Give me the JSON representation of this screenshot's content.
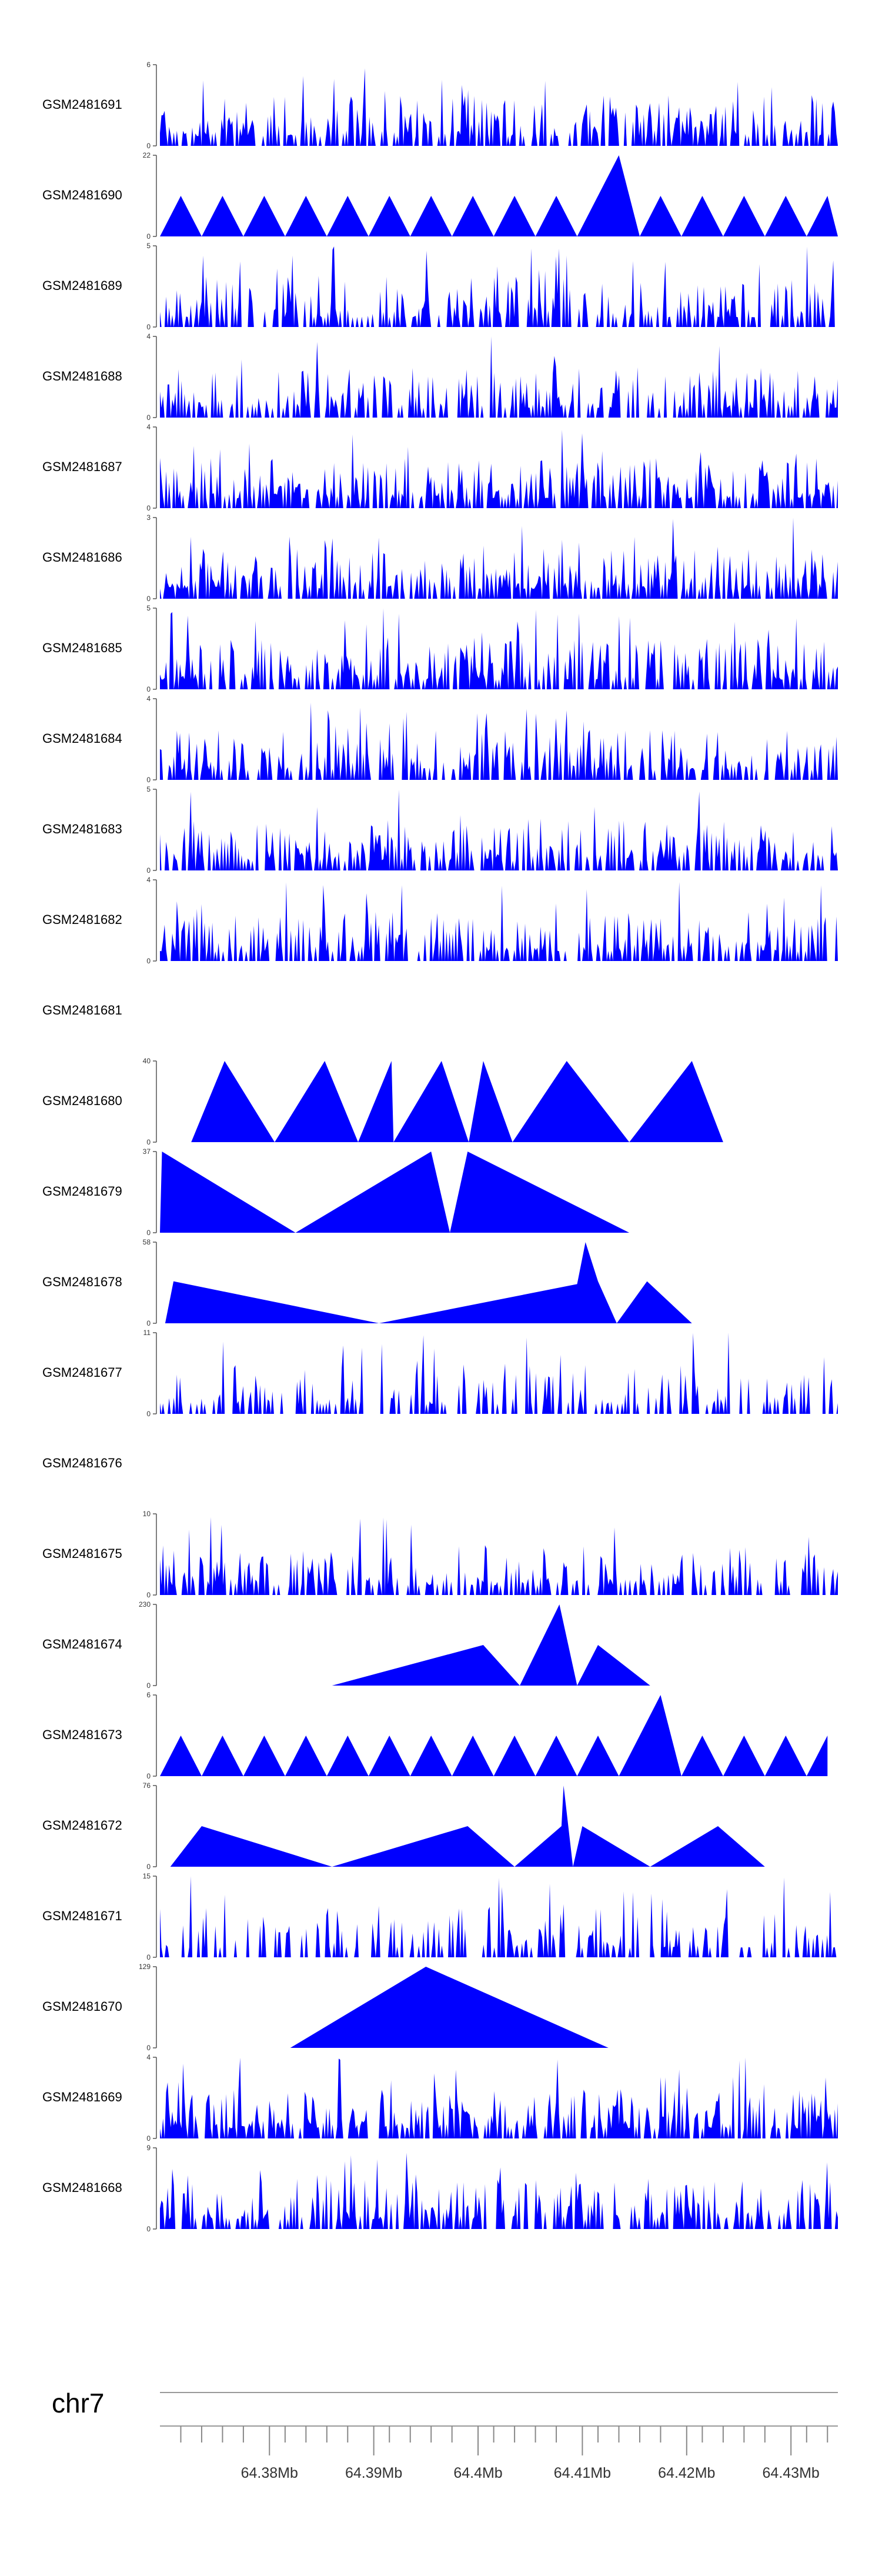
{
  "chart_data": {
    "type": "area",
    "title": "",
    "xlim": [
      64.3695,
      64.4345
    ],
    "x_axis": {
      "chromosome": "chr7",
      "tick_labels": [
        "64.38Mb",
        "64.39Mb",
        "64.4Mb",
        "64.41Mb",
        "64.42Mb",
        "64.43Mb"
      ],
      "major_ticks": [
        64.38,
        64.39,
        64.4,
        64.41,
        64.42,
        64.43
      ],
      "minor_ticks": [
        64.3715,
        64.3735,
        64.3755,
        64.3775,
        64.3815,
        64.3835,
        64.3855,
        64.3875,
        64.3915,
        64.3935,
        64.3955,
        64.3975,
        64.4015,
        64.4035,
        64.4055,
        64.4075,
        64.4115,
        64.4135,
        64.4155,
        64.4175,
        64.4215,
        64.4235,
        64.4255,
        64.4275,
        64.4315,
        64.4335
      ]
    },
    "fill_color": "#0000ff",
    "tracks": [
      {
        "name": "GSM2481691",
        "ymax": 6,
        "pattern": "noise",
        "seed": 11,
        "density": 0.55
      },
      {
        "name": "GSM2481690",
        "ymax": 22,
        "pattern": "peaks",
        "x": [
          64.3695,
          64.3715,
          64.3735,
          64.3755,
          64.3775,
          64.3795,
          64.3815,
          64.3835,
          64.3855,
          64.3875,
          64.3895,
          64.3915,
          64.3935,
          64.3955,
          64.3975,
          64.3995,
          64.4015,
          64.4035,
          64.4055,
          64.4075,
          64.4095,
          64.4115,
          64.4135,
          64.4155,
          64.4175,
          64.4195,
          64.4215,
          64.4235,
          64.4255,
          64.4275,
          64.4295,
          64.4315,
          64.4335,
          64.4345
        ],
        "y": [
          0,
          11,
          0,
          11,
          0,
          11,
          0,
          11,
          0,
          11,
          0,
          11,
          0,
          11,
          0,
          11,
          0,
          11,
          0,
          11,
          0,
          11,
          22,
          0,
          11,
          0,
          11,
          0,
          11,
          0,
          11,
          0,
          11,
          0
        ]
      },
      {
        "name": "GSM2481689",
        "ymax": 5,
        "pattern": "noise",
        "seed": 23,
        "density": 0.5
      },
      {
        "name": "GSM2481688",
        "ymax": 4,
        "pattern": "noise",
        "seed": 37,
        "density": 0.5,
        "spike_x": 64.4013,
        "spike_y": 4
      },
      {
        "name": "GSM2481687",
        "ymax": 4,
        "pattern": "noise",
        "seed": 41,
        "density": 0.6
      },
      {
        "name": "GSM2481686",
        "ymax": 3,
        "pattern": "noise",
        "seed": 53,
        "density": 0.6
      },
      {
        "name": "GSM2481685",
        "ymax": 5,
        "pattern": "noise",
        "seed": 67,
        "density": 0.55
      },
      {
        "name": "GSM2481684",
        "ymax": 4,
        "pattern": "noise",
        "seed": 71,
        "density": 0.55
      },
      {
        "name": "GSM2481683",
        "ymax": 5,
        "pattern": "noise",
        "seed": 83,
        "density": 0.55
      },
      {
        "name": "GSM2481682",
        "ymax": 4,
        "pattern": "noise",
        "seed": 97,
        "density": 0.5
      },
      {
        "name": "GSM2481681",
        "ymax": null,
        "pattern": "empty"
      },
      {
        "name": "GSM2481680",
        "ymax": 40,
        "pattern": "peaks",
        "x": [
          64.3725,
          64.3757,
          64.3805,
          64.3853,
          64.3885,
          64.3917,
          64.3919,
          64.3965,
          64.3991,
          64.4005,
          64.4033,
          64.4085,
          64.4145,
          64.4205,
          64.4235
        ],
        "y": [
          0,
          40,
          0,
          40,
          0,
          40,
          0,
          40,
          0,
          40,
          0,
          40,
          0,
          40,
          0
        ]
      },
      {
        "name": "GSM2481679",
        "ymax": 37,
        "pattern": "peaks",
        "x": [
          64.3695,
          64.3697,
          64.3825,
          64.3955,
          64.3973,
          64.399,
          64.4145
        ],
        "y": [
          0,
          37,
          0,
          37,
          0,
          37,
          0
        ]
      },
      {
        "name": "GSM2481678",
        "ymax": 58,
        "pattern": "peaks",
        "x": [
          64.37,
          64.3708,
          64.3905,
          64.4095,
          64.4103,
          64.4115,
          64.4133,
          64.4162,
          64.4205,
          64.4237
        ],
        "y": [
          0,
          30,
          0,
          28,
          58,
          30,
          0,
          30,
          0,
          0
        ]
      },
      {
        "name": "GSM2481677",
        "ymax": 11,
        "pattern": "noise",
        "seed": 109,
        "density": 0.35,
        "spike_x": 64.424,
        "spike_y": 11
      },
      {
        "name": "GSM2481676",
        "ymax": null,
        "pattern": "empty"
      },
      {
        "name": "GSM2481675",
        "ymax": 10,
        "pattern": "noise",
        "seed": 127,
        "density": 0.5
      },
      {
        "name": "GSM2481674",
        "ymax": 230,
        "pattern": "peaks",
        "x": [
          64.386,
          64.4005,
          64.404,
          64.4078,
          64.4095,
          64.4115,
          64.4165
        ],
        "y": [
          0,
          115,
          0,
          230,
          0,
          115,
          0
        ]
      },
      {
        "name": "GSM2481673",
        "ymax": 6,
        "pattern": "peaks",
        "x": [
          64.3695,
          64.3715,
          64.3735,
          64.3755,
          64.3775,
          64.3795,
          64.3815,
          64.3835,
          64.3855,
          64.3875,
          64.3895,
          64.3915,
          64.3935,
          64.3955,
          64.3975,
          64.3995,
          64.4015,
          64.4035,
          64.4055,
          64.4075,
          64.4095,
          64.4115,
          64.4135,
          64.4155,
          64.4175,
          64.4195,
          64.4215,
          64.4235,
          64.4255,
          64.4275,
          64.4295,
          64.4315,
          64.4335
        ],
        "y": [
          0,
          3,
          0,
          3,
          0,
          3,
          0,
          3,
          0,
          3,
          0,
          3,
          0,
          3,
          0,
          3,
          0,
          3,
          0,
          3,
          0,
          3,
          0,
          3,
          6,
          0,
          3,
          0,
          3,
          0,
          3,
          0,
          3
        ]
      },
      {
        "name": "GSM2481672",
        "ymax": 76,
        "pattern": "peaks",
        "x": [
          64.3705,
          64.3735,
          64.386,
          64.399,
          64.4035,
          64.408,
          64.4082,
          64.4091,
          64.41,
          64.4165,
          64.423,
          64.4275
        ],
        "y": [
          0,
          38,
          0,
          38,
          0,
          38,
          76,
          0,
          38,
          0,
          38,
          0
        ]
      },
      {
        "name": "GSM2481671",
        "ymax": 15,
        "pattern": "noise",
        "seed": 151,
        "density": 0.35,
        "spike_x": 64.3725,
        "spike_y": 15
      },
      {
        "name": "GSM2481670",
        "ymax": 129,
        "pattern": "peaks",
        "x": [
          64.382,
          64.395,
          64.4125
        ],
        "y": [
          0,
          129,
          0
        ]
      },
      {
        "name": "GSM2481669",
        "ymax": 4,
        "pattern": "noise",
        "seed": 163,
        "density": 0.65
      },
      {
        "name": "GSM2481668",
        "ymax": 9,
        "pattern": "noise",
        "seed": 179,
        "density": 0.5
      }
    ]
  }
}
